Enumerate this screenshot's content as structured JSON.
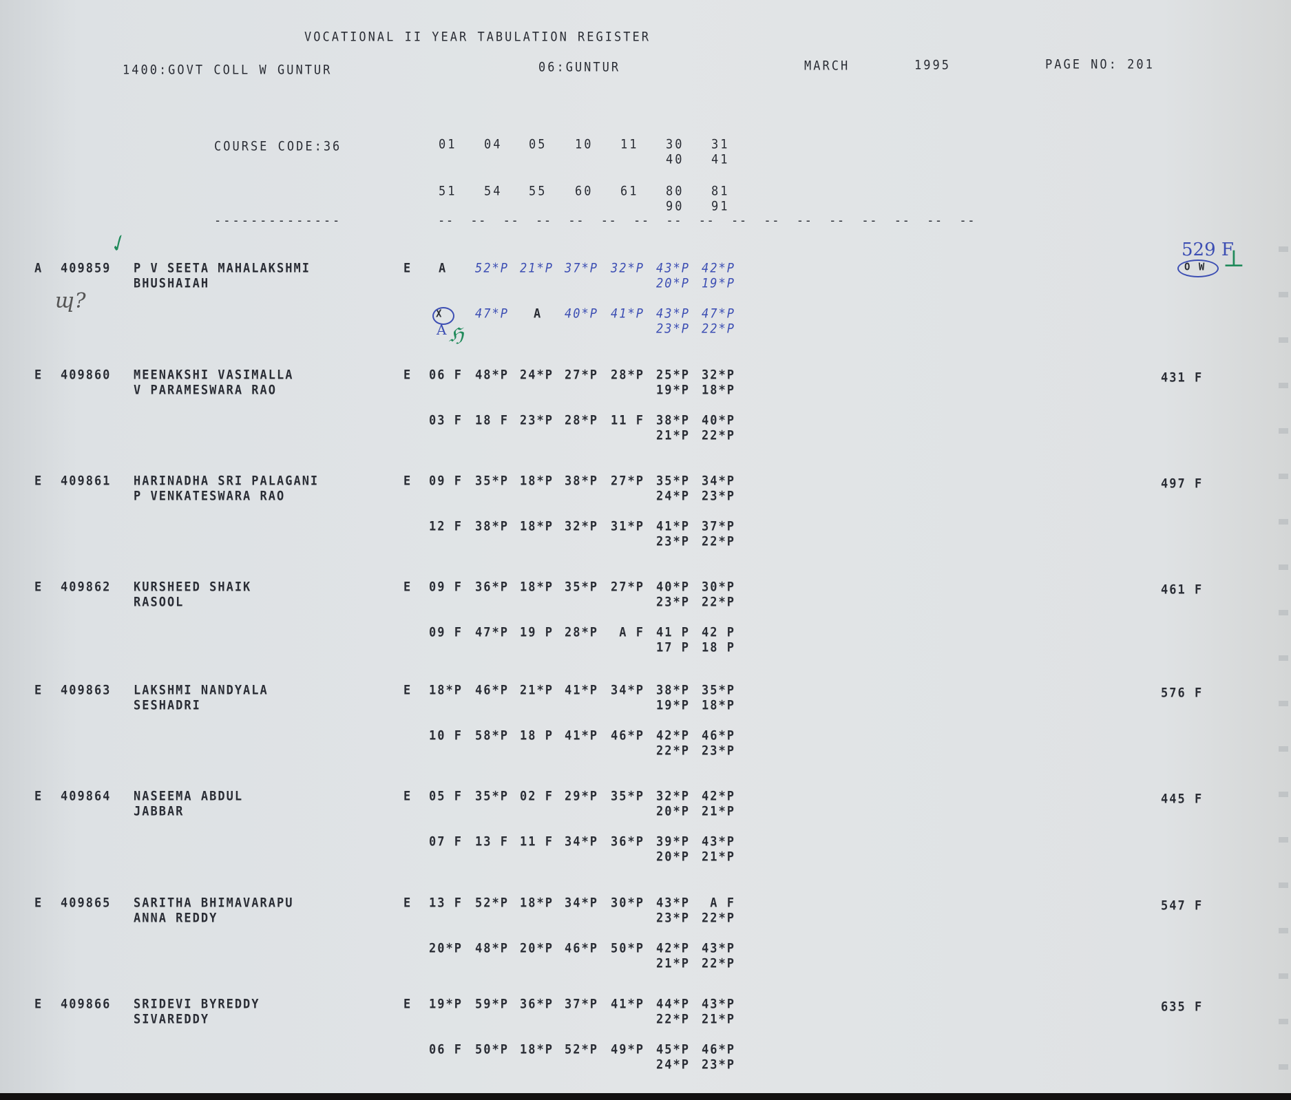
{
  "header": {
    "title": "VOCATIONAL II YEAR TABULATION REGISTER",
    "college": "1400:GOVT COLL W GUNTUR",
    "district": "06:GUNTUR",
    "month": "MARCH",
    "year": "1995",
    "page": "PAGE NO: 201"
  },
  "course": {
    "label": "COURSE CODE:36",
    "codes_row1": [
      "01",
      "04",
      "05",
      "10",
      "11",
      "30",
      "31"
    ],
    "codes_row1b": [
      "40",
      "41"
    ],
    "codes_row2": [
      "51",
      "54",
      "55",
      "60",
      "61",
      "80",
      "90"
    ],
    "codes_row2_fix": [
      "51",
      "54",
      "55",
      "60",
      "61",
      "80",
      "81"
    ],
    "codes_row2b": [
      "90",
      "91"
    ],
    "underline": "--------------",
    "dashes": "--  --  --  --  --  --  --  --  --  --  --  --  --  --  --  --  --"
  },
  "students": [
    {
      "flag": "A",
      "roll": "409859",
      "name1": "P V SEETA MAHALAKSHMI",
      "name2": "BHUSHAIAH",
      "medium": "E",
      "row1": [
        "A",
        "52*P",
        "21*P",
        "37*P",
        "32*P",
        "43*P",
        "42*P"
      ],
      "row1b": [
        "20*P",
        "19*P"
      ],
      "row2": [
        "X",
        "47*P",
        "A",
        "40*P",
        "41*P",
        "43*P",
        "47*P"
      ],
      "row2b": [
        "23*P",
        "22*P"
      ],
      "total": "529 F",
      "annotation": "O W",
      "handwritten": true
    },
    {
      "flag": "E",
      "roll": "409860",
      "name1": "MEENAKSHI VASIMALLA",
      "name2": "V PARAMESWARA RAO",
      "medium": "E",
      "row1": [
        "06 F",
        "48*P",
        "24*P",
        "27*P",
        "28*P",
        "25*P",
        "32*P"
      ],
      "row1b": [
        "19*P",
        "18*P"
      ],
      "row2": [
        "03 F",
        "18 F",
        "23*P",
        "28*P",
        "11 F",
        "38*P",
        "40*P"
      ],
      "row2b": [
        "21*P",
        "22*P"
      ],
      "total": "431 F"
    },
    {
      "flag": "E",
      "roll": "409861",
      "name1": "HARINADHA SRI PALAGANI",
      "name2": "P VENKATESWARA RAO",
      "medium": "E",
      "row1": [
        "09 F",
        "35*P",
        "18*P",
        "38*P",
        "27*P",
        "35*P",
        "34*P"
      ],
      "row1b": [
        "24*P",
        "23*P"
      ],
      "row2": [
        "12 F",
        "38*P",
        "18*P",
        "32*P",
        "31*P",
        "41*P",
        "37*P"
      ],
      "row2b": [
        "23*P",
        "22*P"
      ],
      "total": "497 F"
    },
    {
      "flag": "E",
      "roll": "409862",
      "name1": "KURSHEED SHAIK",
      "name2": "RASOOL",
      "medium": "E",
      "row1": [
        "09 F",
        "36*P",
        "18*P",
        "35*P",
        "27*P",
        "40*P",
        "30*P"
      ],
      "row1b": [
        "23*P",
        "22*P"
      ],
      "row2": [
        "09 F",
        "47*P",
        "19 P",
        "28*P",
        " A F",
        "41 P",
        "42 P"
      ],
      "row2b": [
        "17 P",
        "18 P"
      ],
      "total": "461 F"
    },
    {
      "flag": "E",
      "roll": "409863",
      "name1": "LAKSHMI NANDYALA",
      "name2": "SESHADRI",
      "medium": "E",
      "row1": [
        "18*P",
        "46*P",
        "21*P",
        "41*P",
        "34*P",
        "38*P",
        "35*P"
      ],
      "row1b": [
        "19*P",
        "18*P"
      ],
      "row2": [
        "10 F",
        "58*P",
        "18 P",
        "41*P",
        "46*P",
        "42*P",
        "46*P"
      ],
      "row2b": [
        "22*P",
        "23*P"
      ],
      "total": "576 F"
    },
    {
      "flag": "E",
      "roll": "409864",
      "name1": "NASEEMA ABDUL",
      "name2": "JABBAR",
      "medium": "E",
      "row1": [
        "05 F",
        "35*P",
        "02 F",
        "29*P",
        "35*P",
        "32*P",
        "42*P"
      ],
      "row1b": [
        "20*P",
        "21*P"
      ],
      "row2": [
        "07 F",
        "13 F",
        "11 F",
        "34*P",
        "36*P",
        "39*P",
        "43*P"
      ],
      "row2b": [
        "20*P",
        "21*P"
      ],
      "total": "445 F"
    },
    {
      "flag": "E",
      "roll": "409865",
      "name1": "SARITHA BHIMAVARAPU",
      "name2": "ANNA REDDY",
      "medium": "E",
      "row1": [
        "13 F",
        "52*P",
        "18*P",
        "34*P",
        "30*P",
        "43*P",
        " A F"
      ],
      "row1b": [
        "23*P",
        "22*P"
      ],
      "row2": [
        "20*P",
        "48*P",
        "20*P",
        "46*P",
        "50*P",
        "42*P",
        "43*P"
      ],
      "row2b": [
        "21*P",
        "22*P"
      ],
      "total": "547 F"
    },
    {
      "flag": "E",
      "roll": "409866",
      "name1": "SRIDEVI BYREDDY",
      "name2": "SIVAREDDY",
      "medium": "E",
      "row1": [
        "19*P",
        "59*P",
        "36*P",
        "37*P",
        "41*P",
        "44*P",
        "43*P"
      ],
      "row1b": [
        "22*P",
        "21*P"
      ],
      "row2": [
        "06 F",
        "50*P",
        "18*P",
        "52*P",
        "49*P",
        "45*P",
        "46*P"
      ],
      "row2b": [
        "24*P",
        "23*P"
      ],
      "total": "635 F"
    }
  ],
  "colors": {
    "paper": "#e0e3e5",
    "ink": "#2a2d35",
    "blue_pen": "#3c4eb3",
    "green_pen": "#1f8a5a"
  }
}
